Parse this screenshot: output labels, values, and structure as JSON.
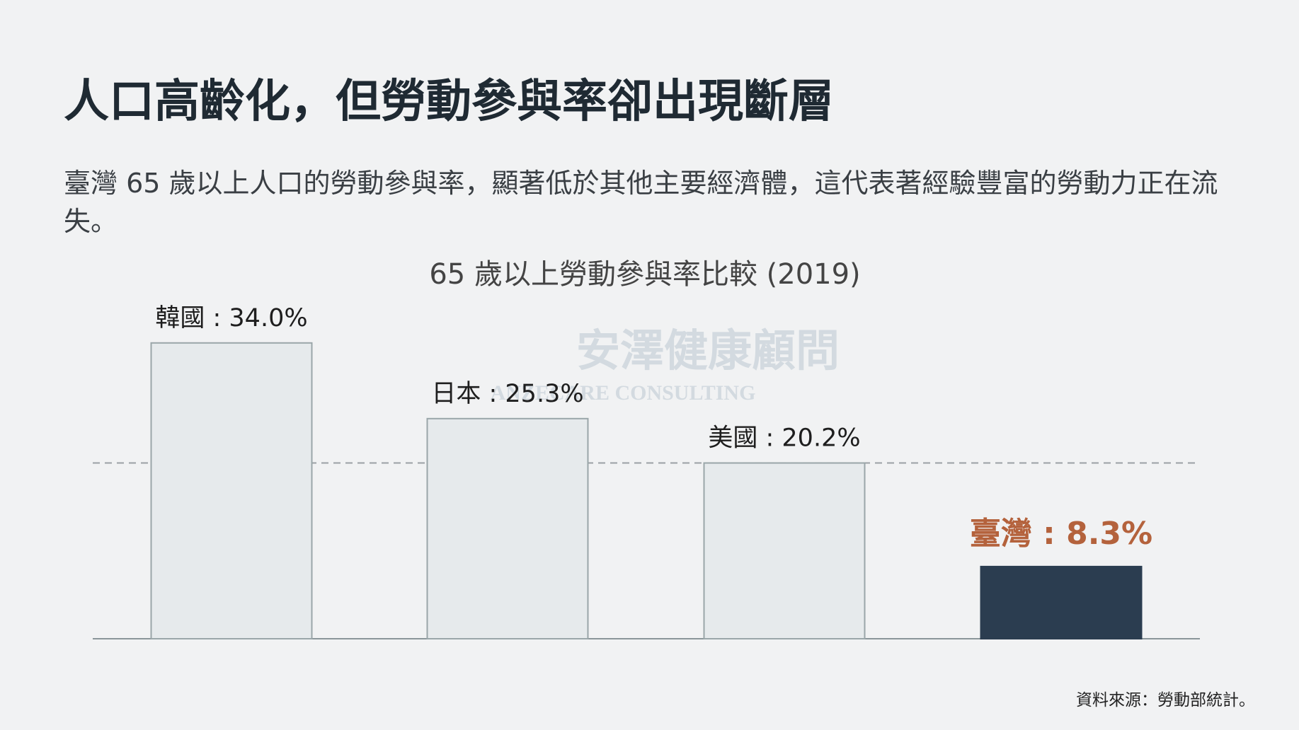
{
  "heading": "人口高齡化，但勞動參與率卻出現斷層",
  "description": "臺灣 65 歲以上人口的勞動參與率，顯著低於其他主要經濟體，這代表著經驗豐富的勞動力正在流失。",
  "watermark": {
    "name": "安澤健康顧問",
    "english": "ANZECARE CONSULTING"
  },
  "source": "資料來源：勞動部統計。",
  "chart_data": {
    "type": "bar",
    "title": "65 歲以上勞動參與率比較 (2019)",
    "values": [
      34.0,
      25.3,
      20.2,
      8.3
    ],
    "value_labels": [
      "韓國 : 34.0%",
      "日本 : 25.3%",
      "美國 : 20.2%",
      "臺灣 : 8.3%"
    ],
    "colors": [
      "#e6eaec",
      "#e6eaec",
      "#e6eaec",
      "#2b3d50"
    ],
    "label_colors": [
      "#1e1e1e",
      "#1e1e1e",
      "#1e1e1e",
      "#b4623c"
    ],
    "reference_line": 20.2
  }
}
